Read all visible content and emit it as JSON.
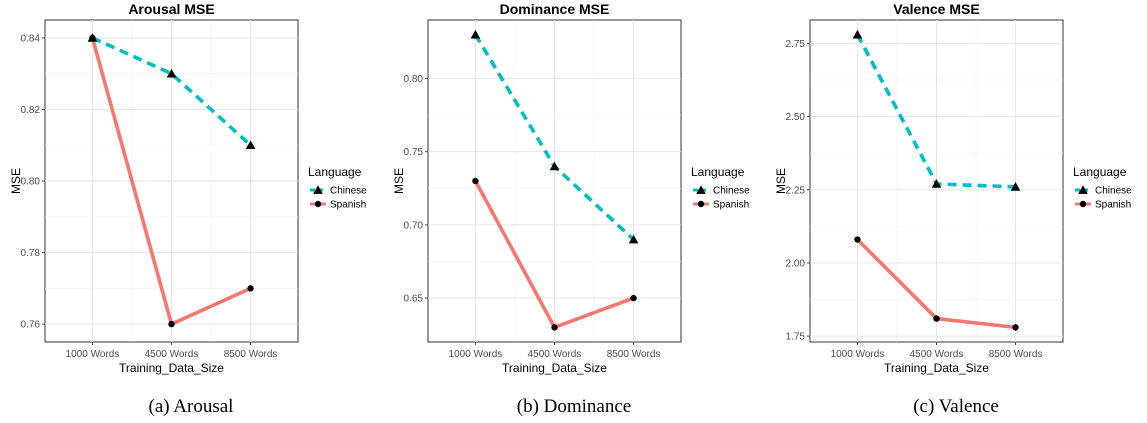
{
  "chart_data": [
    {
      "type": "line",
      "title": "Arousal MSE",
      "xlabel": "Training_Data_Size",
      "ylabel": "MSE",
      "categories": [
        "1000 Words",
        "4500 Words",
        "8500 Words"
      ],
      "ylim": [
        0.755,
        0.845
      ],
      "yticks": [
        0.76,
        0.78,
        0.8,
        0.82,
        0.84
      ],
      "ytick_labels": [
        "0.76",
        "0.78",
        "0.80",
        "0.82",
        "0.84"
      ],
      "legend_title": "Language",
      "legend_position": "right",
      "series": [
        {
          "name": "Chinese",
          "values": [
            0.84,
            0.83,
            0.81
          ],
          "color": "#00BFC4",
          "line_style": "dashed",
          "marker": "triangle"
        },
        {
          "name": "Spanish",
          "values": [
            0.84,
            0.76,
            0.77
          ],
          "color": "#F8766D",
          "line_style": "solid",
          "marker": "circle"
        }
      ],
      "caption": "(a)  Arousal",
      "grid": true
    },
    {
      "type": "line",
      "title": "Dominance MSE",
      "xlabel": "Training_Data_Size",
      "ylabel": "MSE",
      "categories": [
        "1000 Words",
        "4500 Words",
        "8500 Words"
      ],
      "ylim": [
        0.62,
        0.84
      ],
      "yticks": [
        0.65,
        0.7,
        0.75,
        0.8
      ],
      "ytick_labels": [
        "0.65",
        "0.70",
        "0.75",
        "0.80"
      ],
      "legend_title": "Language",
      "legend_position": "right",
      "series": [
        {
          "name": "Chinese",
          "values": [
            0.83,
            0.74,
            0.69
          ],
          "color": "#00BFC4",
          "line_style": "dashed",
          "marker": "triangle"
        },
        {
          "name": "Spanish",
          "values": [
            0.73,
            0.63,
            0.65
          ],
          "color": "#F8766D",
          "line_style": "solid",
          "marker": "circle"
        }
      ],
      "caption": "(b)  Dominance",
      "grid": true
    },
    {
      "type": "line",
      "title": "Valence MSE",
      "xlabel": "Training_Data_Size",
      "ylabel": "MSE",
      "categories": [
        "1000 Words",
        "4500 Words",
        "8500 Words"
      ],
      "ylim": [
        1.73,
        2.83
      ],
      "yticks": [
        1.75,
        2.0,
        2.25,
        2.5,
        2.75
      ],
      "ytick_labels": [
        "1.75",
        "2.00",
        "2.25",
        "2.50",
        "2.75"
      ],
      "legend_title": "Language",
      "legend_position": "right",
      "series": [
        {
          "name": "Chinese",
          "values": [
            2.78,
            2.27,
            2.26
          ],
          "color": "#00BFC4",
          "line_style": "dashed",
          "marker": "triangle"
        },
        {
          "name": "Spanish",
          "values": [
            2.08,
            1.81,
            1.78
          ],
          "color": "#F8766D",
          "line_style": "solid",
          "marker": "circle"
        }
      ],
      "caption": "(c)  Valence",
      "grid": true
    }
  ]
}
